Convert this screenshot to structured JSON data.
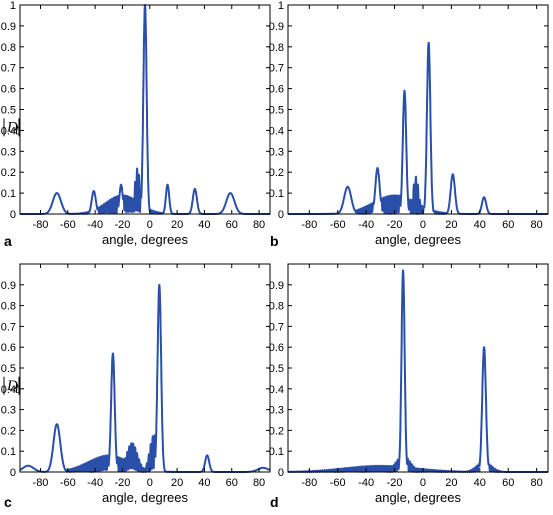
{
  "chart_data": [
    {
      "panel": "a",
      "type": "line",
      "xlabel": "angle, degrees",
      "ylabel": "|D_t|",
      "xlim": [
        -95,
        88
      ],
      "ylim": [
        0,
        1
      ],
      "xticks": [
        -80,
        -60,
        -40,
        -20,
        0,
        20,
        40,
        60,
        80
      ],
      "yticks": [
        0,
        0.1,
        0.2,
        0.3,
        0.4,
        0.5,
        0.6,
        0.7,
        0.8,
        0.9,
        1
      ],
      "series": [
        {
          "peaks": [
            [
              -3.5,
              1.0,
              1.2
            ],
            [
              -68,
              0.1,
              3
            ],
            [
              -41,
              0.11,
              1.5
            ],
            [
              -21,
              0.14,
              1.2
            ],
            [
              13,
              0.14,
              1.2
            ],
            [
              33,
              0.12,
              1.5
            ],
            [
              59,
              0.1,
              3
            ]
          ],
          "envelope": [
            [
              -20,
              12,
              0.09
            ],
            [
              -9,
              2,
              0.22
            ]
          ]
        }
      ]
    },
    {
      "panel": "b",
      "type": "line",
      "xlabel": "angle, degrees",
      "ylabel": "",
      "xlim": [
        -95,
        88
      ],
      "ylim": [
        0,
        1
      ],
      "xticks": [
        -80,
        -60,
        -40,
        -20,
        0,
        20,
        40,
        60,
        80
      ],
      "yticks": [
        0,
        0.1,
        0.2,
        0.3,
        0.4,
        0.5,
        0.6,
        0.7,
        0.8,
        0.9,
        1
      ],
      "series": [
        {
          "peaks": [
            [
              4,
              0.82,
              1.2
            ],
            [
              -13,
              0.59,
              1.2
            ],
            [
              -53,
              0.13,
              2.5
            ],
            [
              -32,
              0.22,
              1.5
            ],
            [
              21,
              0.19,
              1.5
            ],
            [
              43,
              0.08,
              1.5
            ]
          ],
          "envelope": [
            [
              -20,
              15,
              0.09
            ],
            [
              -5,
              2,
              0.18
            ]
          ]
        }
      ]
    },
    {
      "panel": "c",
      "type": "line",
      "xlabel": "angle, degrees",
      "ylabel": "|D_t|",
      "xlim": [
        -95,
        88
      ],
      "ylim": [
        0,
        1
      ],
      "xticks": [
        -80,
        -60,
        -40,
        -20,
        0,
        20,
        40,
        60,
        80
      ],
      "yticks": [
        0,
        0.1,
        0.2,
        0.3,
        0.4,
        0.5,
        0.6,
        0.7,
        0.8,
        0.9
      ],
      "series": [
        {
          "peaks": [
            [
              7,
              0.9,
              1.3
            ],
            [
              -27,
              0.57,
              1.3
            ],
            [
              -68,
              0.23,
              2.5
            ],
            [
              42,
              0.08,
              1.5
            ],
            [
              -89,
              0.03,
              4
            ],
            [
              83,
              0.02,
              4
            ]
          ],
          "envelope": [
            [
              -30,
              15,
              0.08
            ],
            [
              -13,
              4,
              0.14
            ],
            [
              3,
              3,
              0.18
            ]
          ]
        }
      ]
    },
    {
      "panel": "d",
      "type": "line",
      "xlabel": "angle, degrees",
      "ylabel": "",
      "xlim": [
        -95,
        88
      ],
      "ylim": [
        0,
        1
      ],
      "xticks": [
        -80,
        -60,
        -40,
        -20,
        0,
        20,
        40,
        60,
        80
      ],
      "yticks": [
        0,
        0.1,
        0.2,
        0.3,
        0.4,
        0.5,
        0.6,
        0.7,
        0.8,
        0.9
      ],
      "series": [
        {
          "peaks": [
            [
              -14,
              0.97,
              1.1
            ],
            [
              43,
              0.6,
              1.3
            ]
          ],
          "envelope": [
            [
              -30,
              25,
              0.03
            ],
            [
              -14,
              5,
              0.08
            ],
            [
              43,
              5,
              0.05
            ]
          ]
        }
      ]
    }
  ]
}
